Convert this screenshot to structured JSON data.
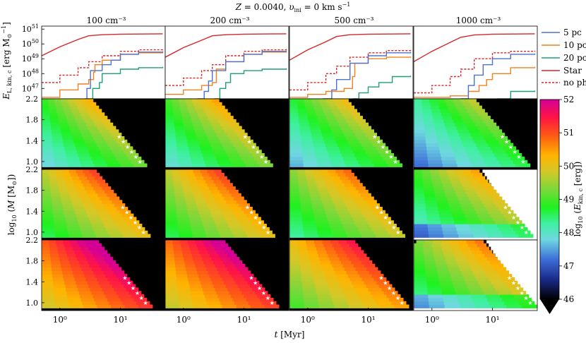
{
  "chart_data": {
    "type": "line+heatmap",
    "title": "Z = 0.0040, υ_ini = 0 km s⁻¹",
    "title_parts": {
      "a": "Z",
      "b": " = 0.0040, ",
      "c": "υ",
      "d": "ini",
      "e": " = 0 km s",
      "f": "−1"
    },
    "columns": [
      {
        "density": "100",
        "unit": "cm⁻³"
      },
      {
        "density": "200",
        "unit": "cm⁻³"
      },
      {
        "density": "500",
        "unit": "cm⁻³"
      },
      {
        "density": "1000",
        "unit": "cm⁻³"
      }
    ],
    "row_labels": [
      "5 pc",
      "10 pc",
      "20 pc"
    ],
    "xlabel": "t [Myr]",
    "xlabel_parts": {
      "var": "t",
      "unit": " [Myr]"
    },
    "xscale": "log",
    "xlim": [
      0.5,
      55
    ],
    "xticks": [
      "10⁰",
      "10¹"
    ],
    "top_ylabel": "E_L,kin,c [erg M⊙⁻¹]",
    "top_ylabel_parts": {
      "a": "E",
      "b": "L, kin, c",
      "c": " [erg M",
      "d": "⊙",
      "e": "−1",
      "f": "]"
    },
    "top_yscale": "log",
    "top_ylim": [
      46.3,
      51.2
    ],
    "top_yticks": [
      {
        "base": "10",
        "exp": "51"
      },
      {
        "base": "10",
        "exp": "50"
      },
      {
        "base": "10",
        "exp": "49"
      },
      {
        "base": "10",
        "exp": "48"
      },
      {
        "base": "10",
        "exp": "47"
      }
    ],
    "heat_ylabel": "log10 (M [M⊙])",
    "heat_ylabel_parts": {
      "a": "log",
      "b": "10",
      "c": " (",
      "d": "M",
      "e": " [M",
      "f": "⊙",
      "g": "])"
    },
    "heat_ylim": [
      0.85,
      2.2
    ],
    "heat_yticks": [
      "2.2",
      "1.8",
      "1.4",
      "1.0"
    ],
    "colorbar": {
      "label": "log10 (E_kin,c [erg])",
      "label_parts": {
        "a": "log",
        "b": "10",
        "c": " (",
        "d": "E",
        "e": "kin, c",
        "f": " [erg])"
      },
      "min": 46,
      "max": 52,
      "ticks": [
        "52",
        "51",
        "50",
        "49",
        "48",
        "47",
        "46"
      ]
    },
    "legend": {
      "placement": "right",
      "entries": [
        {
          "label": "5 pc",
          "color": "#4c72d0",
          "dashed": false
        },
        {
          "label": "10 pc",
          "color": "#f0821e",
          "dashed": false
        },
        {
          "label": "20 pc",
          "color": "#1f9e7a",
          "dashed": false
        },
        {
          "label": "Star",
          "color": "#d62728",
          "dashed": false
        },
        {
          "label": "no ph",
          "color": "#d62728",
          "dashed": true
        }
      ]
    },
    "top_series": [
      {
        "star": [
          [
            0.5,
            49.2
          ],
          [
            1,
            49.8
          ],
          [
            2,
            50.3
          ],
          [
            3,
            50.55
          ],
          [
            5,
            50.62
          ],
          [
            10,
            50.66
          ],
          [
            50,
            50.68
          ]
        ],
        "noph": [
          [
            0.5,
            47.4
          ],
          [
            1,
            47.9
          ],
          [
            2,
            48.4
          ],
          [
            3,
            48.8
          ],
          [
            5,
            49.2
          ],
          [
            10,
            49.5
          ],
          [
            20,
            49.6
          ],
          [
            50,
            49.65
          ]
        ],
        "pc5": [
          [
            2.6,
            46.3
          ],
          [
            2.8,
            47.0
          ],
          [
            3.2,
            48.2
          ],
          [
            5,
            48.6
          ],
          [
            7,
            48.9
          ],
          [
            10,
            49.3
          ],
          [
            20,
            49.45
          ],
          [
            50,
            49.5
          ]
        ],
        "pc10": [
          [
            0.5,
            46.4
          ],
          [
            1,
            46.9
          ],
          [
            2,
            47.3
          ],
          [
            3,
            47.6
          ],
          [
            3.6,
            48.1
          ],
          [
            3.8,
            48.6
          ],
          [
            5,
            48.9
          ],
          [
            10,
            49.3
          ],
          [
            20,
            49.4
          ],
          [
            50,
            49.45
          ]
        ],
        "pc20": [
          [
            2.8,
            46.3
          ],
          [
            3.5,
            47.0
          ],
          [
            4.5,
            47.4
          ],
          [
            5,
            48.0
          ],
          [
            10,
            48.3
          ],
          [
            20,
            48.4
          ],
          [
            50,
            48.45
          ]
        ]
      },
      {
        "star": [
          [
            0.5,
            49.1
          ],
          [
            1,
            49.75
          ],
          [
            2,
            50.25
          ],
          [
            3,
            50.55
          ],
          [
            5,
            50.62
          ],
          [
            10,
            50.66
          ],
          [
            50,
            50.68
          ]
        ],
        "noph": [
          [
            0.5,
            47.2
          ],
          [
            1,
            47.7
          ],
          [
            2,
            48.2
          ],
          [
            3,
            48.6
          ],
          [
            5,
            49.2
          ],
          [
            10,
            49.5
          ],
          [
            20,
            49.6
          ],
          [
            50,
            49.65
          ]
        ],
        "pc5": [
          [
            1.7,
            46.3
          ],
          [
            2.2,
            46.8
          ],
          [
            2.6,
            47.5
          ],
          [
            3,
            48.2
          ],
          [
            5,
            48.8
          ],
          [
            10,
            49.3
          ],
          [
            20,
            49.5
          ],
          [
            50,
            49.55
          ]
        ],
        "pc10": [
          [
            0.5,
            46.6
          ],
          [
            1,
            46.9
          ],
          [
            2,
            47.2
          ],
          [
            3,
            47.4
          ],
          [
            3.5,
            48.3
          ],
          [
            5,
            48.8
          ],
          [
            10,
            49.3
          ],
          [
            20,
            49.45
          ],
          [
            50,
            49.5
          ]
        ],
        "pc20": [
          [
            3.2,
            46.3
          ],
          [
            4,
            47.0
          ],
          [
            5,
            47.4
          ],
          [
            6,
            48.0
          ],
          [
            10,
            48.2
          ],
          [
            20,
            48.3
          ],
          [
            50,
            48.35
          ]
        ]
      },
      {
        "star": [
          [
            0.5,
            48.9
          ],
          [
            1,
            49.6
          ],
          [
            2,
            50.15
          ],
          [
            3,
            50.5
          ],
          [
            5,
            50.62
          ],
          [
            10,
            50.66
          ],
          [
            50,
            50.68
          ]
        ],
        "noph": [
          [
            0.5,
            46.9
          ],
          [
            1,
            47.4
          ],
          [
            2,
            48.0
          ],
          [
            3,
            48.5
          ],
          [
            5,
            49.1
          ],
          [
            10,
            49.4
          ],
          [
            20,
            49.55
          ],
          [
            50,
            49.6
          ]
        ],
        "pc5": [
          [
            1.8,
            46.3
          ],
          [
            2.5,
            46.9
          ],
          [
            3,
            47.6
          ],
          [
            5,
            48.7
          ],
          [
            10,
            49.2
          ],
          [
            20,
            49.4
          ],
          [
            50,
            49.45
          ]
        ],
        "pc10": [
          [
            0.5,
            46.4
          ],
          [
            1,
            46.6
          ],
          [
            2,
            46.8
          ],
          [
            4,
            47.0
          ],
          [
            5.5,
            47.8
          ],
          [
            6,
            48.7
          ],
          [
            10,
            49.0
          ],
          [
            20,
            49.1
          ],
          [
            50,
            49.15
          ]
        ],
        "pc20": [
          [
            5.5,
            46.3
          ],
          [
            7,
            46.7
          ],
          [
            10,
            47.1
          ],
          [
            15,
            47.4
          ],
          [
            25,
            47.8
          ],
          [
            50,
            47.85
          ]
        ]
      },
      {
        "star": [
          [
            0.5,
            48.8
          ],
          [
            1,
            49.5
          ],
          [
            2,
            50.1
          ],
          [
            3,
            50.45
          ],
          [
            5,
            50.6
          ],
          [
            10,
            50.66
          ],
          [
            50,
            50.68
          ]
        ],
        "noph": [
          [
            0.5,
            46.7
          ],
          [
            1,
            47.2
          ],
          [
            2,
            47.8
          ],
          [
            3,
            48.3
          ],
          [
            5,
            49.0
          ],
          [
            10,
            49.4
          ],
          [
            20,
            49.5
          ],
          [
            50,
            49.55
          ]
        ],
        "pc5": [
          [
            3,
            46.3
          ],
          [
            4,
            47.2
          ],
          [
            5,
            47.9
          ],
          [
            7,
            48.6
          ],
          [
            10,
            49.0
          ],
          [
            20,
            49.3
          ],
          [
            50,
            49.35
          ]
        ],
        "pc10": [
          [
            0.5,
            46.4
          ],
          [
            2,
            46.5
          ],
          [
            4,
            46.8
          ],
          [
            6,
            47.2
          ],
          [
            8,
            47.6
          ],
          [
            10,
            48.0
          ],
          [
            20,
            48.4
          ],
          [
            50,
            48.45
          ]
        ],
        "pc20": [
          [
            12,
            46.3
          ],
          [
            20,
            46.8
          ],
          [
            50,
            46.85
          ]
        ]
      }
    ],
    "heatmap_model": {
      "logM_min": 0.9,
      "logM_max": 2.2,
      "logM_step": 0.065,
      "left_edge_logt": [
        [
          2.1,
          2.4,
          2.6
        ],
        [
          2.3,
          2.5,
          2.9
        ],
        [
          2.8,
          3.1,
          3.6
        ],
        [
          3.2,
          3.6,
          4.2
        ]
      ],
      "white_fill": [
        false,
        false,
        false,
        false,
        false,
        false,
        false,
        false,
        false,
        false,
        true,
        true
      ],
      "energy_base": [
        [
          47.8,
          48.6,
          49.8
        ],
        [
          47.9,
          48.6,
          49.7
        ],
        [
          47.6,
          48.3,
          49.0
        ],
        [
          47.2,
          47.9,
          48.2
        ]
      ]
    }
  }
}
